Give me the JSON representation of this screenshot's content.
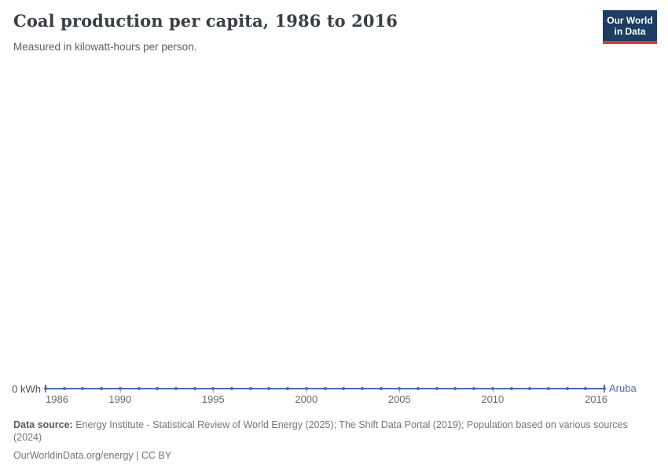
{
  "header": {
    "title": "Coal production per capita, 1986 to 2016",
    "subtitle": "Measured in kilowatt-hours per person.",
    "logo": {
      "line1": "Our World",
      "line2": "in Data",
      "bg_color": "#1d3d63",
      "accent_color": "#d73c3c"
    }
  },
  "chart_data": {
    "type": "line",
    "title": "Coal production per capita, 1986 to 2016",
    "subtitle": "Measured in kilowatt-hours per person.",
    "unit": "kWh",
    "x": [
      1986,
      1987,
      1988,
      1989,
      1990,
      1991,
      1992,
      1993,
      1994,
      1995,
      1996,
      1997,
      1998,
      1999,
      2000,
      2001,
      2002,
      2003,
      2004,
      2005,
      2006,
      2007,
      2008,
      2009,
      2010,
      2011,
      2012,
      2013,
      2014,
      2015,
      2016
    ],
    "series": [
      {
        "name": "Aruba",
        "values": [
          0,
          0,
          0,
          0,
          0,
          0,
          0,
          0,
          0,
          0,
          0,
          0,
          0,
          0,
          0,
          0,
          0,
          0,
          0,
          0,
          0,
          0,
          0,
          0,
          0,
          0,
          0,
          0,
          0,
          0,
          0
        ]
      }
    ],
    "x_tick_labels": [
      "1986",
      "1990",
      "1995",
      "2000",
      "2005",
      "2010",
      "2016"
    ],
    "y_tick_labels": [
      "0 kWh"
    ],
    "y_axis_label": "0 kWh",
    "ylim": [
      0,
      0
    ],
    "grid": false,
    "legend_position": "right-of-line-end",
    "line_color": "#4c6ea9",
    "entity_label": "Aruba"
  },
  "footer": {
    "datasource_label": "Data source:",
    "datasource_text": " Energy Institute - Statistical Review of World Energy (2025); The Shift Data Portal (2019); Population based on various sources (2024)",
    "link": "OurWorldinData.org/energy",
    "separator": " | ",
    "license": "CC BY"
  }
}
